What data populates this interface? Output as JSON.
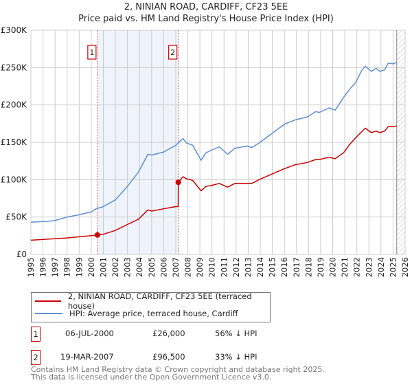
{
  "title": "2, NINIAN ROAD, CARDIFF, CF23 5EE",
  "subtitle": "Price paid vs. HM Land Registry's House Price Index (HPI)",
  "colors": {
    "property": "#cc0000",
    "hpi": "#5b8fd4",
    "shade": "#eef3fc",
    "marker_line": "#e06060"
  },
  "chart_data": {
    "type": "line",
    "title": "2, NINIAN ROAD, CARDIFF, CF23 5EE",
    "xlim": [
      1995,
      2026
    ],
    "ylim": [
      0,
      300000
    ],
    "grid": true,
    "y_ticks": [
      {
        "value": 0,
        "label": "£0"
      },
      {
        "value": 50000,
        "label": "£50K"
      },
      {
        "value": 100000,
        "label": "£100K"
      },
      {
        "value": 150000,
        "label": "£150K"
      },
      {
        "value": 200000,
        "label": "£200K"
      },
      {
        "value": 250000,
        "label": "£250K"
      },
      {
        "value": 300000,
        "label": "£300K"
      }
    ],
    "x_ticks": [
      "1995",
      "1996",
      "1997",
      "1998",
      "1999",
      "2000",
      "2001",
      "2002",
      "2003",
      "2004",
      "2005",
      "2006",
      "2007",
      "2008",
      "2009",
      "2010",
      "2011",
      "2012",
      "2013",
      "2014",
      "2015",
      "2016",
      "2017",
      "2018",
      "2019",
      "2020",
      "2021",
      "2022",
      "2023",
      "2024",
      "2025",
      "2026"
    ],
    "shaded_range": [
      2000.51,
      2007.21
    ],
    "data_end": 2025.3,
    "series": [
      {
        "name": "2, NINIAN ROAD, CARDIFF, CF23 5EE (terraced house)",
        "color": "#cc0000",
        "x": [
          1995,
          1998,
          2000,
          2000.51,
          2001,
          2002,
          2003,
          2003.9,
          2004.7,
          2005,
          2006,
          2007,
          2007.2,
          2007.21,
          2007.6,
          2007.9,
          2008.4,
          2009.1,
          2009.5,
          2009.9,
          2010.6,
          2011.3,
          2011.9,
          2012.9,
          2013.3,
          2013.9,
          2014.9,
          2015.9,
          2016.9,
          2017.9,
          2018.6,
          2018.9,
          2019.7,
          2020.2,
          2020.9,
          2021.4,
          2021.9,
          2022.7,
          2023.2,
          2023.6,
          2023.9,
          2024.3,
          2024.6,
          2025.0,
          2025.3
        ],
        "y": [
          19000,
          22000,
          25000,
          26000,
          27000,
          32000,
          40000,
          47000,
          59500,
          58000,
          61000,
          64000,
          64000,
          96500,
          104000,
          101000,
          99000,
          85000,
          91000,
          92000,
          95000,
          90000,
          95000,
          95000,
          95000,
          100000,
          107000,
          114000,
          120000,
          123000,
          127000,
          127000,
          130000,
          128000,
          136000,
          147000,
          156000,
          169000,
          163000,
          165000,
          163000,
          165000,
          171000,
          171000,
          172000
        ]
      },
      {
        "name": "HPI: Average price, terraced house, Cardiff",
        "color": "#5b8fd4",
        "x": [
          1995,
          1996,
          1996.9,
          1998,
          1999,
          2000,
          2000.4,
          2001,
          2002,
          2003,
          2003.9,
          2004.7,
          2005,
          2006,
          2007,
          2007.6,
          2007.9,
          2008.4,
          2009.1,
          2009.5,
          2009.9,
          2010.6,
          2011.3,
          2011.9,
          2012.9,
          2013.3,
          2013.9,
          2014.9,
          2015.9,
          2016.1,
          2016.9,
          2017.9,
          2018.6,
          2018.9,
          2019.7,
          2020.2,
          2020.9,
          2021.4,
          2021.9,
          2022.4,
          2022.7,
          2023.2,
          2023.6,
          2023.9,
          2024.3,
          2024.6,
          2025.0,
          2025.3
        ],
        "y": [
          43000,
          44000,
          45000,
          50000,
          53000,
          57000,
          61000,
          64000,
          73000,
          91000,
          110000,
          134000,
          133000,
          137000,
          146000,
          155000,
          149000,
          146000,
          126000,
          136000,
          139000,
          144000,
          134000,
          142000,
          145000,
          143000,
          149000,
          161000,
          173000,
          175000,
          180000,
          184000,
          191000,
          190000,
          196000,
          193000,
          210000,
          221000,
          230000,
          246000,
          252000,
          245000,
          249000,
          245000,
          247000,
          256000,
          255000,
          257000
        ]
      }
    ],
    "sales": [
      {
        "label": "1",
        "x": 2000.51,
        "y": 26000
      },
      {
        "label": "2",
        "x": 2007.21,
        "y": 96500
      }
    ]
  },
  "legend": [
    {
      "label": "2, NINIAN ROAD, CARDIFF, CF23 5EE (terraced house)",
      "color": "#cc0000"
    },
    {
      "label": "HPI: Average price, terraced house, Cardiff",
      "color": "#5b8fd4"
    }
  ],
  "transactions": [
    {
      "num": "1",
      "date": "06-JUL-2000",
      "price": "£26,000",
      "hpi": "56% ↓ HPI"
    },
    {
      "num": "2",
      "date": "19-MAR-2007",
      "price": "£96,500",
      "hpi": "33% ↓ HPI"
    }
  ],
  "footer": {
    "line1": "Contains HM Land Registry data © Crown copyright and database right 2025.",
    "line2": "This data is licensed under the Open Government Licence v3.0."
  }
}
